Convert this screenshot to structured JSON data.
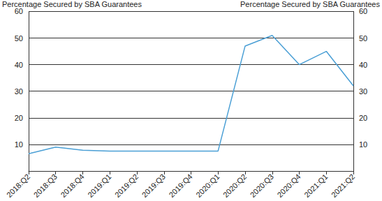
{
  "chart_data": {
    "type": "line",
    "ylabel": "Percentage Secured by SBA Guarantees",
    "y2label": "Percentage Secured by SBA Guarantees",
    "categories": [
      "2018:Q2",
      "2018:Q3",
      "2018:Q4",
      "2019:Q1",
      "2019:Q2",
      "2019:Q3",
      "2019:Q4",
      "2020:Q1",
      "2020:Q2",
      "2020:Q3",
      "2020:Q4",
      "2021:Q1",
      "2021:Q2"
    ],
    "values": [
      6.5,
      9,
      7.8,
      7.5,
      7.5,
      7.5,
      7.5,
      7.5,
      47,
      51,
      40,
      45,
      32
    ],
    "color": "#4a9fd5",
    "ylim": [
      0,
      60
    ],
    "yticks": [
      10,
      20,
      30,
      40,
      50,
      60
    ],
    "y2lim": [
      0,
      60
    ],
    "y2ticks": [
      10,
      20,
      30,
      40,
      50,
      60
    ],
    "grid": true
  }
}
